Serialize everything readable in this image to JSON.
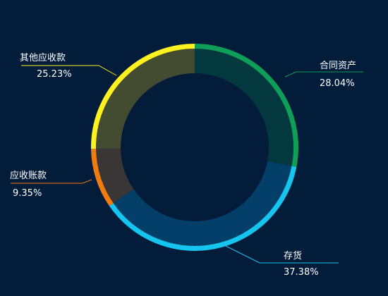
{
  "chart_data": {
    "type": "pie",
    "variant": "donut",
    "title": "",
    "legend": "none",
    "slices": [
      {
        "label": "合同资产",
        "percent_text": "28.04%",
        "value": 28.04,
        "color": "#0f9e57",
        "fill": "#03383f"
      },
      {
        "label": "存货",
        "percent_text": "37.38%",
        "value": 37.38,
        "color": "#16c4f0",
        "fill": "#033f69"
      },
      {
        "label": "应收账款",
        "percent_text": "9.35%",
        "value": 9.35,
        "color": "#f07c10",
        "fill": "#3a3635"
      },
      {
        "label": "其他应收款",
        "percent_text": "25.23%",
        "value": 25.23,
        "color": "#fff21e",
        "fill": "#434c30"
      }
    ]
  }
}
